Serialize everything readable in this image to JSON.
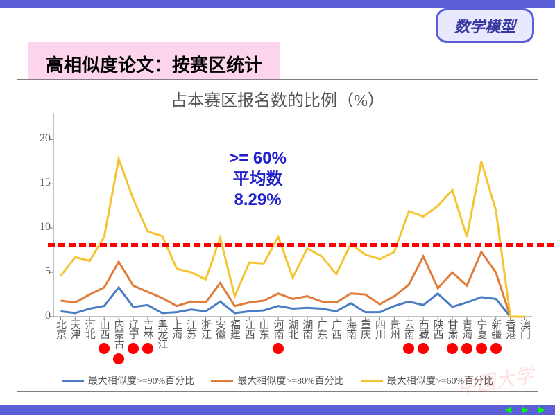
{
  "header_badge": "数学模型",
  "title": "高相似度论文：按赛区统计",
  "chart": {
    "title": "占本赛区报名数的比例（%）",
    "ylim": [
      0,
      23
    ],
    "yticks": [
      0,
      5,
      10,
      15,
      20
    ],
    "categories": [
      "北京",
      "天津",
      "河北",
      "山西",
      "内蒙古",
      "辽宁",
      "吉林",
      "黑龙江",
      "上海",
      "江苏",
      "浙江",
      "安徽",
      "福建",
      "江西",
      "山东",
      "河南",
      "湖北",
      "湖南",
      "广东",
      "广西",
      "海南",
      "重庆",
      "四川",
      "贵州",
      "云南",
      "西藏",
      "陕西",
      "甘肃",
      "青海",
      "宁夏",
      "新疆",
      "香港",
      "澳门"
    ],
    "series": [
      {
        "name": "最大相似度>=90%百分比",
        "color": "#4a7dc4",
        "values": [
          0.6,
          0.4,
          0.9,
          1.2,
          3.3,
          1.1,
          1.3,
          0.4,
          0.5,
          0.8,
          0.6,
          1.7,
          0.4,
          0.6,
          0.7,
          1.2,
          0.9,
          1.0,
          0.9,
          0.6,
          1.5,
          0.5,
          0.5,
          1.2,
          1.7,
          1.3,
          2.6,
          1.1,
          1.6,
          2.2,
          2.0,
          0.0,
          0.0
        ]
      },
      {
        "name": "最大相似度>=80%百分比",
        "color": "#e07b3a",
        "values": [
          1.8,
          1.6,
          2.5,
          3.3,
          6.2,
          3.5,
          2.8,
          2.1,
          1.2,
          1.7,
          1.6,
          3.8,
          1.2,
          1.6,
          1.8,
          2.6,
          2.0,
          2.3,
          1.7,
          1.6,
          2.6,
          2.5,
          1.4,
          2.3,
          3.6,
          6.8,
          3.2,
          5.0,
          3.5,
          7.3,
          5.0,
          0.0,
          0.0
        ]
      },
      {
        "name": "最大相似度>=60%百分比",
        "color": "#f5c531",
        "values": [
          4.6,
          6.7,
          6.3,
          9.0,
          17.8,
          13.3,
          9.6,
          9.1,
          5.4,
          5.0,
          4.2,
          8.9,
          2.3,
          6.1,
          6.0,
          9.0,
          4.4,
          7.7,
          6.8,
          4.8,
          8.2,
          7.0,
          6.5,
          7.3,
          11.9,
          11.3,
          12.5,
          14.3,
          9.0,
          17.5,
          12.0,
          0.0,
          0.0
        ]
      }
    ],
    "series_line_width": 3,
    "avg_value": 8.29,
    "avg_line_color": "#ff0000",
    "annotation": {
      "lines": [
        ">= 60%",
        "平均数",
        "8.29%"
      ],
      "x_cat_index": 14,
      "y_val": 19
    },
    "red_dots_indices": [
      3,
      4,
      5,
      6,
      15,
      24,
      25,
      27,
      28,
      29,
      30
    ],
    "red_dot_color": "#ff0000",
    "background_color": "#ffffff",
    "axis_color": "#808080",
    "tick_fontsize": 15
  },
  "legend_labels": [
    "最大相似度>=90%百分比",
    "最大相似度>=80%百分比",
    "最大相似度>=60%百分比"
  ],
  "legend_colors": [
    "#4a7dc4",
    "#e07b3a",
    "#f5c531"
  ],
  "nav": {
    "prev": "◀",
    "play": "▶",
    "next": "▶"
  }
}
